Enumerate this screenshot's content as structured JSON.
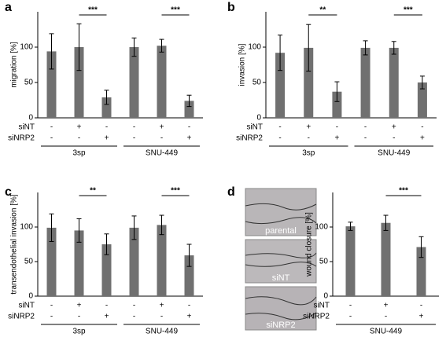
{
  "chart_data": [
    {
      "type": "bar",
      "panel": "a",
      "ylabel": "migration [%]",
      "ylim": [
        0,
        150
      ],
      "yticks": [
        0,
        50,
        100
      ],
      "color": "#707070",
      "values": [
        94,
        100,
        29,
        100,
        102,
        24
      ],
      "errors": [
        25,
        33,
        10,
        13,
        9,
        8
      ],
      "significance": [
        null,
        null,
        "***",
        null,
        null,
        "***"
      ],
      "rows": [
        {
          "name": "siNT",
          "values": [
            "-",
            "+",
            "-",
            "-",
            "+",
            "-"
          ]
        },
        {
          "name": "siNRP2",
          "values": [
            "-",
            "-",
            "+",
            "-",
            "-",
            "+"
          ]
        }
      ],
      "groups": [
        "3sp",
        "SNU-449"
      ]
    },
    {
      "type": "bar",
      "panel": "b",
      "ylabel": "invasion [%]",
      "ylim": [
        0,
        150
      ],
      "yticks": [
        0,
        50,
        100
      ],
      "color": "#707070",
      "values": [
        92,
        99,
        37,
        99,
        99,
        50
      ],
      "errors": [
        25,
        33,
        14,
        10,
        9,
        9
      ],
      "significance": [
        null,
        null,
        "**",
        null,
        null,
        "***"
      ],
      "rows": [
        {
          "name": "siNT",
          "values": [
            "-",
            "+",
            "-",
            "-",
            "+",
            "-"
          ]
        },
        {
          "name": "siNRP2",
          "values": [
            "-",
            "-",
            "+",
            "-",
            "-",
            "+"
          ]
        }
      ],
      "groups": [
        "3sp",
        "SNU-449"
      ]
    },
    {
      "type": "bar",
      "panel": "c",
      "ylabel": "transendothelial invasion [%]",
      "ylim": [
        0,
        150
      ],
      "yticks": [
        0,
        50,
        100
      ],
      "color": "#707070",
      "values": [
        99,
        95,
        75,
        99,
        103,
        59
      ],
      "errors": [
        20,
        17,
        15,
        17,
        14,
        16
      ],
      "significance": [
        null,
        null,
        "**",
        null,
        null,
        "***"
      ],
      "rows": [
        {
          "name": "siNT",
          "values": [
            "-",
            "+",
            "-",
            "-",
            "+",
            "-"
          ]
        },
        {
          "name": "siNRP2",
          "values": [
            "-",
            "-",
            "+",
            "-",
            "-",
            "+"
          ]
        }
      ],
      "groups": [
        "3sp",
        "SNU-449"
      ]
    },
    {
      "type": "bar",
      "panel": "d",
      "ylabel": "wound closure [%]",
      "ylim": [
        0,
        150
      ],
      "yticks": [
        0,
        50,
        100
      ],
      "color": "#707070",
      "values": [
        101,
        106,
        71
      ],
      "errors": [
        6,
        11,
        15
      ],
      "significance": [
        null,
        null,
        "***"
      ],
      "rows": [
        {
          "name": "siNT",
          "values": [
            "-",
            "+",
            "-"
          ]
        },
        {
          "name": "siNRP2",
          "values": [
            "-",
            "-",
            "+"
          ]
        }
      ],
      "groups": [
        "SNU-449"
      ]
    }
  ],
  "micrographs": {
    "labels": [
      "parental",
      "siNT",
      "siNRP2"
    ]
  }
}
